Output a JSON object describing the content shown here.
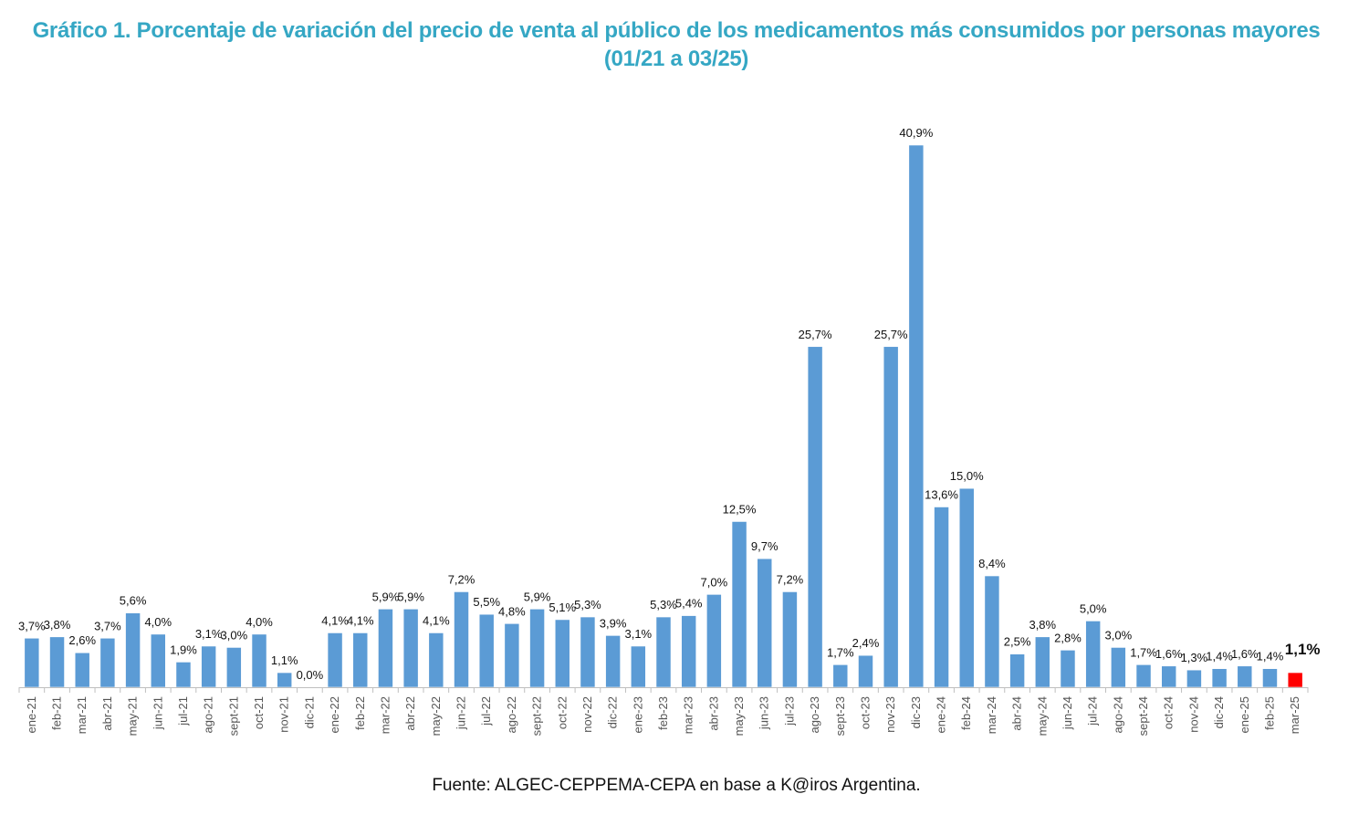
{
  "chart_data": {
    "type": "bar",
    "title": "Gráfico 1. Porcentaje de variación del precio de venta al público de los medicamentos más consumidos por personas mayores",
    "subtitle": "(01/21 a 03/25)",
    "xlabel": "",
    "ylabel": "",
    "ylim": [
      0,
      41
    ],
    "grid": false,
    "legend": "none",
    "source": "Fuente: ALGEC-CEPPEMA-CEPA en base a K@iros Argentina.",
    "colors": {
      "bar": "#5b9bd5",
      "highlight": "#ff0000",
      "title": "#35a7c4"
    },
    "highlight_index": 50,
    "categories": [
      "ene-21",
      "feb-21",
      "mar-21",
      "abr-21",
      "may-21",
      "jun-21",
      "jul-21",
      "ago-21",
      "sept-21",
      "oct-21",
      "nov-21",
      "dic-21",
      "ene-22",
      "feb-22",
      "mar-22",
      "abr-22",
      "may-22",
      "jun-22",
      "jul-22",
      "ago-22",
      "sept-22",
      "oct-22",
      "nov-22",
      "dic-22",
      "ene-23",
      "feb-23",
      "mar-23",
      "abr-23",
      "may-23",
      "jun-23",
      "jul-23",
      "ago-23",
      "sept-23",
      "oct-23",
      "nov-23",
      "dic-23",
      "ene-24",
      "feb-24",
      "mar-24",
      "abr-24",
      "may-24",
      "jun-24",
      "jul-24",
      "ago-24",
      "sept-24",
      "oct-24",
      "nov-24",
      "dic-24",
      "ene-25",
      "feb-25",
      "mar-25"
    ],
    "values": [
      3.7,
      3.8,
      2.6,
      3.7,
      5.6,
      4.0,
      1.9,
      3.1,
      3.0,
      4.0,
      1.1,
      0.0,
      4.1,
      4.1,
      5.9,
      5.9,
      4.1,
      7.2,
      5.5,
      4.8,
      5.9,
      5.1,
      5.3,
      3.9,
      3.1,
      5.3,
      5.4,
      7.0,
      12.5,
      9.7,
      7.2,
      25.7,
      1.7,
      2.4,
      25.7,
      40.9,
      13.6,
      15.0,
      8.4,
      2.5,
      3.8,
      2.8,
      5.0,
      3.0,
      1.7,
      1.6,
      1.3,
      1.4,
      1.6,
      1.4,
      1.1
    ],
    "labels": [
      "3,7%",
      "3,8%",
      "2,6%",
      "3,7%",
      "5,6%",
      "4,0%",
      "1,9%",
      "3,1%",
      "3,0%",
      "4,0%",
      "1,1%",
      "0,0%",
      "4,1%",
      "4,1%",
      "5,9%",
      "5,9%",
      "4,1%",
      "7,2%",
      "5,5%",
      "4,8%",
      "5,9%",
      "5,1%",
      "5,3%",
      "3,9%",
      "3,1%",
      "5,3%",
      "5,4%",
      "7,0%",
      "12,5%",
      "9,7%",
      "7,2%",
      "25,7%",
      "1,7%",
      "2,4%",
      "25,7%",
      "40,9%",
      "13,6%",
      "15,0%",
      "8,4%",
      "2,5%",
      "3,8%",
      "2,8%",
      "5,0%",
      "3,0%",
      "1,7%",
      "1,6%",
      "1,3%",
      "1,4%",
      "1,6%",
      "1,4%",
      "1,1%"
    ]
  }
}
